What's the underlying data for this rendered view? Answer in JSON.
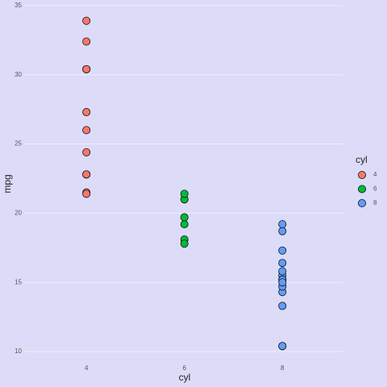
{
  "chart_data": {
    "type": "scatter",
    "x_label": "cyl",
    "y_label": "mpg",
    "xlim": [
      2.73,
      9.23
    ],
    "ylim": [
      8.14,
      35.4
    ],
    "xticks": [
      4,
      6,
      8
    ],
    "yticks": [
      10,
      15,
      20,
      25,
      30,
      35
    ],
    "grid": true,
    "legend": "right",
    "legend_title": "cyl",
    "series": [
      {
        "name": "4",
        "color": "#f8766d",
        "x": [
          4,
          4,
          4,
          4,
          4,
          4,
          4,
          4,
          4,
          4,
          4
        ],
        "values": [
          22.8,
          24.4,
          22.8,
          32.4,
          30.4,
          33.9,
          21.5,
          27.3,
          26.0,
          30.4,
          21.4
        ]
      },
      {
        "name": "6",
        "color": "#00ba38",
        "x": [
          6,
          6,
          6,
          6,
          6,
          6,
          6
        ],
        "values": [
          21.0,
          21.0,
          21.4,
          18.1,
          19.2,
          17.8,
          19.7
        ]
      },
      {
        "name": "8",
        "color": "#619cff",
        "x": [
          8,
          8,
          8,
          8,
          8,
          8,
          8,
          8,
          8,
          8,
          8,
          8,
          8,
          8
        ],
        "values": [
          18.7,
          14.3,
          16.4,
          17.3,
          15.2,
          10.4,
          10.4,
          14.7,
          15.5,
          15.2,
          13.3,
          19.2,
          15.8,
          15.0
        ]
      }
    ]
  }
}
